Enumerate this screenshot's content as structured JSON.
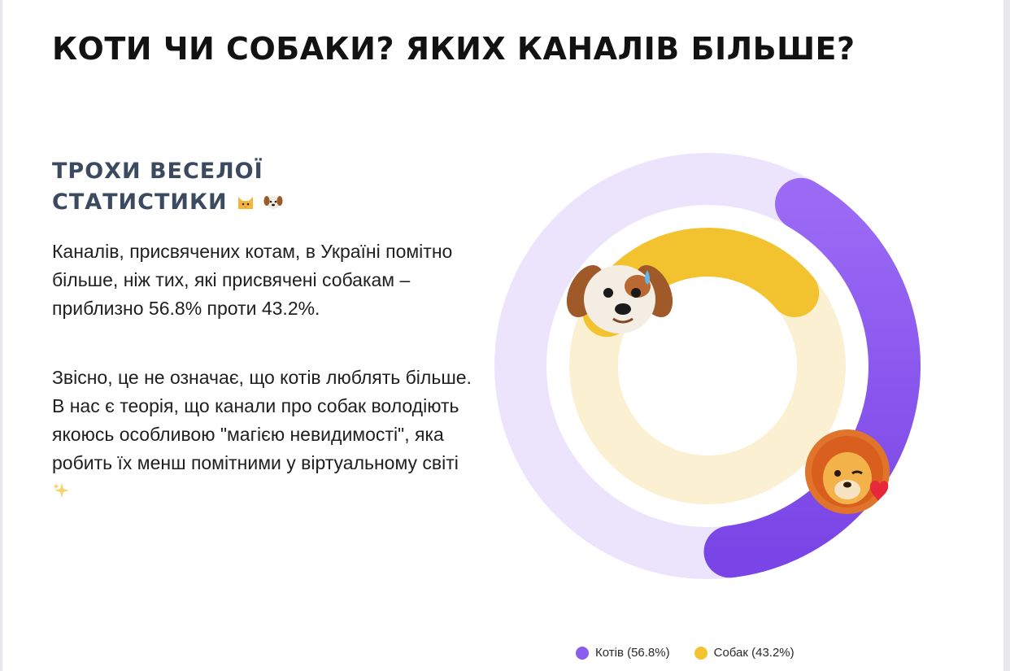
{
  "title": "КОТИ ЧИ СОБАКИ? ЯКИХ КАНАЛІВ БІЛЬШЕ?",
  "subtitle": {
    "line1": "ТРОХИ ВЕСЕЛОЇ",
    "line2": "СТАТИСТИКИ",
    "icons": [
      "cat-face-icon",
      "dog-face-icon"
    ]
  },
  "paragraph1": "Каналів, присвячених котам, в Україні помітно більше, ніж тих, які присвячені собакам – приблизно 56.8% проти 43.2%.",
  "paragraph2": "Звісно, це не означає, що котів люблять більше. В нас є теорія, що канали про собак володіють якоюсь особливою \"магією невидимості\", яка робить їх менш помітними у віртуальному світі",
  "paragraph2_icon": "sparkles-icon",
  "chart_data": {
    "type": "donut",
    "series": [
      {
        "name": "Котів",
        "value": 56.8,
        "color": "#8a5cf0",
        "track_color": "#ece4fd",
        "badge_icon": "lion-face-icon"
      },
      {
        "name": "Собак",
        "value": 43.2,
        "color": "#f2c32e",
        "track_color": "#fbf0d2",
        "badge_icon": "dog-face-icon"
      }
    ],
    "legend": {
      "position": "bottom",
      "items": [
        {
          "label": "Котів (56.8%)",
          "color": "#8a5cf0"
        },
        {
          "label": "Собак (43.2%)",
          "color": "#f2c32e"
        }
      ]
    }
  }
}
